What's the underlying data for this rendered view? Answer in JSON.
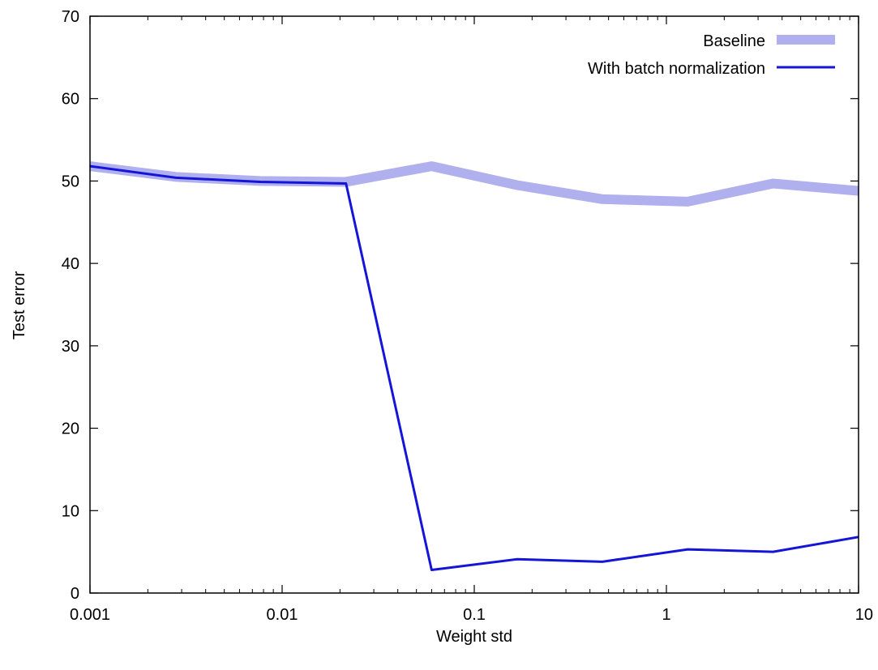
{
  "chart_data": {
    "type": "line",
    "xlabel": "Weight std",
    "ylabel": "Test error",
    "xscale": "log",
    "xlim": [
      0.001,
      10
    ],
    "ylim": [
      0,
      70
    ],
    "xticks": [
      0.001,
      0.01,
      0.1,
      1,
      10
    ],
    "xtick_labels": [
      "0.001",
      "0.01",
      "0.1",
      "1",
      "10"
    ],
    "yticks": [
      0,
      10,
      20,
      30,
      40,
      50,
      60,
      70
    ],
    "ytick_labels": [
      "0",
      "10",
      "20",
      "30",
      "40",
      "50",
      "60",
      "70"
    ],
    "grid": false,
    "legend_position": "top-right",
    "x": [
      0.001,
      0.0028,
      0.0077,
      0.0215,
      0.06,
      0.167,
      0.464,
      1.29,
      3.59,
      10
    ],
    "series": [
      {
        "name": "Baseline",
        "color": "#b0b0ee",
        "values": [
          51.8,
          50.5,
          50.0,
          49.9,
          51.8,
          49.5,
          47.8,
          47.5,
          49.7,
          48.8
        ]
      },
      {
        "name": "With batch normalization",
        "color": "#1515d8",
        "values": [
          51.8,
          50.4,
          49.9,
          49.7,
          2.8,
          4.1,
          3.8,
          5.3,
          5.0,
          6.8
        ]
      }
    ]
  }
}
